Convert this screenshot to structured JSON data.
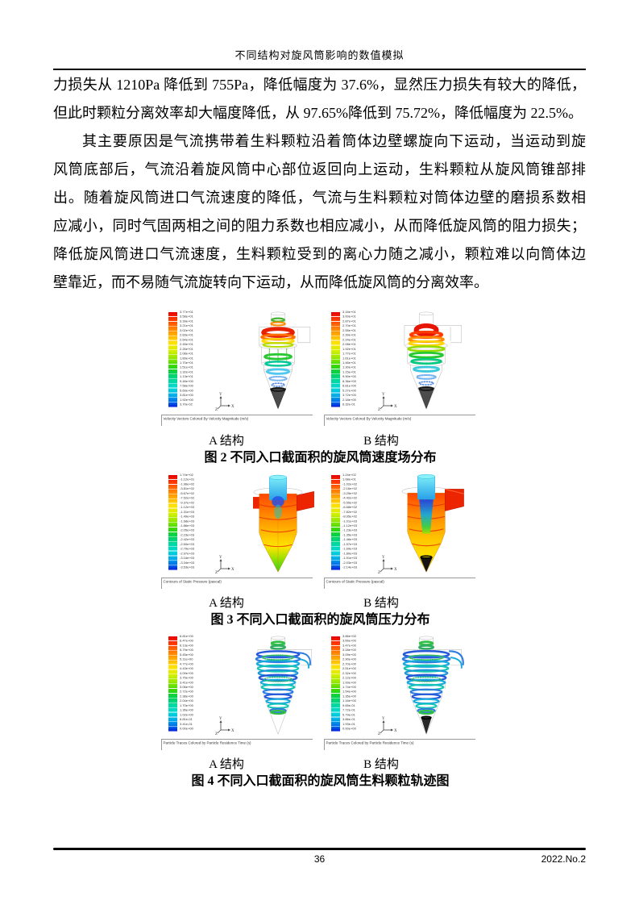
{
  "header": {
    "title": "不同结构对旋风筒影响的数值模拟"
  },
  "body": {
    "p1_lines": [
      "力损失从 1210Pa 降低到 755Pa，降低幅度为 37.6%，显然压力损失有较大的降低，",
      "但此时颗粒分离效率却大幅度降低，从 97.65%降低到 75.72%，降低幅度为 22.5%。"
    ],
    "p2_lines": [
      "其主要原因是气流携带着生料颗粒沿着筒体边壁螺旋向下运动，当运动到旋",
      "风筒底部后，气流沿着旋风筒中心部位返回向上运动，生料颗粒从旋风筒锥部排",
      "出。随着旋风筒进口气流速度的降低，气流与生料颗粒对筒体边壁的磨损系数相",
      "应减小，同时气固两相之间的阻力系数也相应减小，从而降低旋风筒的阻力损失；",
      "降低旋风筒进口气流速度，生料颗粒受到的离心力随之减小，颗粒难以向筒体边",
      "壁靠近，而不易随气流旋转向下运动，从而降低旋风筒的分离效率。"
    ]
  },
  "cfd_common": {
    "axis_x": "X",
    "axis_y": "Y",
    "axis_z": "Z"
  },
  "figures": [
    {
      "label_a": "A 结构",
      "label_b": "B 结构",
      "caption": "图 2 不同入口截面积的旋风筒速度场分布",
      "panel_caption": "Velocity Vectors Colored By Velocity Magnitude (m/s)",
      "colorbar_a": [
        "3.77e+01",
        "3.58e+01",
        "3.39e+01",
        "3.21e+01",
        "3.02e+01",
        "2.83e+01",
        "2.64e+01",
        "2.45e+01",
        "2.26e+01",
        "2.08e+01",
        "1.89e+01",
        "1.70e+01",
        "1.51e+01",
        "1.32e+01",
        "1.13e+01",
        "9.46e+00",
        "7.58e+00",
        "5.69e+00",
        "3.81e+00",
        "1.92e+00",
        "3.70e-02"
      ],
      "colorbar_b": [
        "3.16e+01",
        "3.00e+01",
        "2.87e+01",
        "2.70e+01",
        "2.55e+01",
        "2.39e+01",
        "2.24e+01",
        "2.08e+01",
        "1.92e+01",
        "1.77e+01",
        "1.61e+01",
        "1.46e+01",
        "1.30e+01",
        "1.15e+01",
        "9.90e+00",
        "8.36e+00",
        "6.81e+00",
        "5.27e+00",
        "3.72e+00",
        "2.18e+00",
        "6.32e-01"
      ]
    },
    {
      "label_a": "A 结构",
      "label_b": "B 结构",
      "caption": "图 3 不同入口截面积的旋风筒压力分布",
      "panel_caption": "Contours of Static Pressure (pascal)",
      "colorbar_a": [
        "1.74e+02",
        "-1.12e+01",
        "-1.96e+02",
        "-3.81e+02",
        "-5.67e+02",
        "-7.52e+02",
        "-9.37e+02",
        "-1.12e+03",
        "-1.31e+03",
        "-1.49e+03",
        "-1.68e+03",
        "-1.86e+03",
        "-2.05e+03",
        "-2.23e+03",
        "-2.42e+03",
        "-2.60e+03",
        "-2.79e+03",
        "-2.97e+03",
        "-3.16e+03",
        "-3.34e+03",
        "-3.53e+03"
      ],
      "colorbar_b": [
        "1.24e+02",
        "1.08e+01",
        "-1.02e+02",
        "-2.16e+02",
        "-3.29e+02",
        "-4.42e+02",
        "-5.55e+02",
        "-6.68e+02",
        "-7.82e+02",
        "-8.95e+02",
        "-1.01e+03",
        "-1.12e+03",
        "-1.23e+03",
        "-1.35e+03",
        "-1.46e+03",
        "-1.57e+03",
        "-1.69e+03",
        "-1.80e+03",
        "-1.91e+03",
        "-2.03e+03",
        "-2.14e+03"
      ]
    },
    {
      "label_a": "A 结构",
      "label_b": "B 结构",
      "caption": "图 4 不同入口截面积的旋风筒生料颗粒轨迹图",
      "panel_caption": "Particle Traces Colored by Particle Residence Time (s)",
      "colorbar_a": [
        "6.81e+00",
        "6.47e+00",
        "6.13e+00",
        "5.79e+00",
        "5.45e+00",
        "5.11e+00",
        "4.77e+00",
        "4.43e+00",
        "4.09e+00",
        "3.75e+00",
        "3.41e+00",
        "3.06e+00",
        "2.72e+00",
        "2.38e+00",
        "2.04e+00",
        "1.70e+00",
        "1.36e+00",
        "1.02e+00",
        "6.81e-01",
        "3.41e-01",
        "0.00e+00"
      ],
      "colorbar_b": [
        "3.86e+00",
        "3.66e+00",
        "3.47e+00",
        "3.28e+00",
        "3.09e+00",
        "2.90e+00",
        "2.70e+00",
        "2.51e+00",
        "2.32e+00",
        "2.12e+00",
        "1.93e+00",
        "1.74e+00",
        "1.54e+00",
        "1.35e+00",
        "1.16e+00",
        "9.65e-01",
        "7.72e-01",
        "5.79e-01",
        "3.86e-01",
        "1.93e-01",
        "0.00e+00"
      ]
    }
  ],
  "footer": {
    "page_number": "36",
    "issue": "2022.No.2"
  }
}
